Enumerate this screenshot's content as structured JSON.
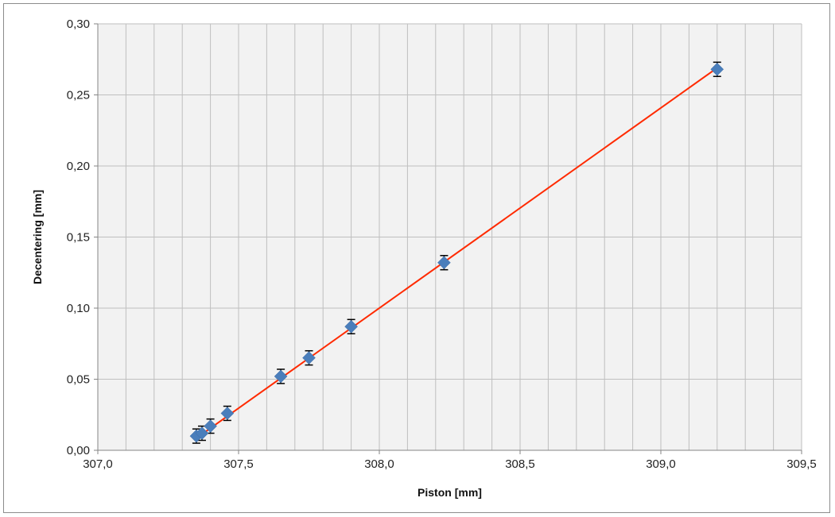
{
  "chart_data": {
    "type": "scatter",
    "title": "",
    "xlabel": "Piston [mm]",
    "ylabel": "Decentering [mm]",
    "xlim": [
      307.0,
      309.5
    ],
    "ylim": [
      0.0,
      0.3
    ],
    "x_ticks": [
      307.0,
      307.5,
      308.0,
      308.5,
      309.0,
      309.5
    ],
    "x_tick_labels": [
      "307,0",
      "307,5",
      "308,0",
      "308,5",
      "309,0",
      "309,5"
    ],
    "y_ticks": [
      0.0,
      0.05,
      0.1,
      0.15,
      0.2,
      0.25,
      0.3
    ],
    "y_tick_labels": [
      "0,00",
      "0,05",
      "0,10",
      "0,15",
      "0,20",
      "0,25",
      "0,30"
    ],
    "minor_x_gridline_step": 0.1,
    "grid": true,
    "legend": "none",
    "colors": {
      "marker": "#4a7ebb",
      "fit_line": "#ff2a00",
      "error_bar": "#000000",
      "plot_background": "#f2f2f2",
      "gridline": "#bfbfbf"
    },
    "series": [
      {
        "marker": "diamond",
        "error_bars": "y",
        "y_error": 0.005,
        "points": [
          {
            "x": 307.35,
            "y": 0.01
          },
          {
            "x": 307.37,
            "y": 0.012
          },
          {
            "x": 307.4,
            "y": 0.017
          },
          {
            "x": 307.46,
            "y": 0.026
          },
          {
            "x": 307.65,
            "y": 0.052
          },
          {
            "x": 307.75,
            "y": 0.065
          },
          {
            "x": 307.9,
            "y": 0.087
          },
          {
            "x": 308.23,
            "y": 0.132
          },
          {
            "x": 309.2,
            "y": 0.268
          }
        ]
      }
    ],
    "trendline": {
      "type": "linear",
      "x": [
        307.35,
        309.2
      ],
      "y": [
        0.0085,
        0.269
      ]
    }
  }
}
